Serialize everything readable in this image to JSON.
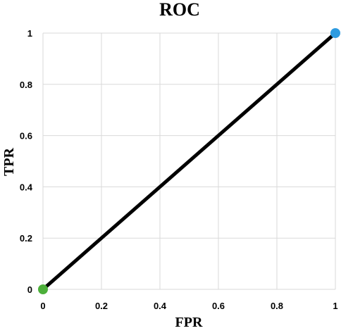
{
  "chart_data": {
    "type": "line",
    "title": "ROC",
    "xlabel": "FPR",
    "ylabel": "TPR",
    "xlim": [
      0,
      1
    ],
    "ylim": [
      0,
      1
    ],
    "xticks": [
      "0",
      "0.2",
      "0.4",
      "0.6",
      "0.8",
      "1"
    ],
    "yticks": [
      "0",
      "0.2",
      "0.4",
      "0.6",
      "0.8",
      "1"
    ],
    "grid": true,
    "series": [
      {
        "x": [
          0,
          1
        ],
        "y": [
          0,
          1
        ],
        "color": "#000000"
      }
    ],
    "points": [
      {
        "x": 0,
        "y": 0,
        "color": "#4caf3a"
      },
      {
        "x": 1,
        "y": 1,
        "color": "#2e9be0"
      }
    ]
  }
}
